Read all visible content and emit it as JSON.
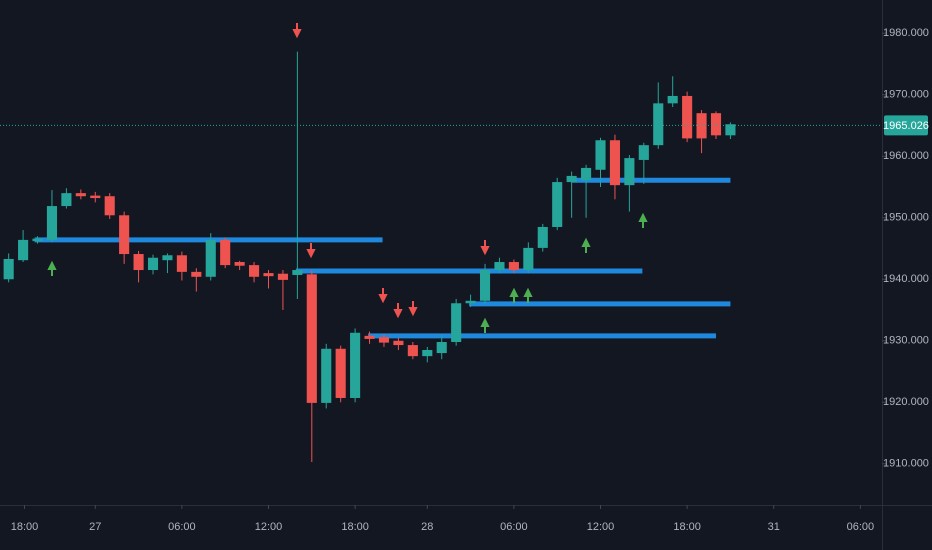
{
  "chart_data": {
    "type": "candlestick",
    "open": [
      1940.0,
      1943.1,
      1946.2,
      1946.4,
      1951.9,
      1954.0,
      1953.6,
      1953.5,
      1950.4,
      1944.1,
      1941.5,
      1943.1,
      1943.9,
      1941.2,
      1940.4,
      1946.4,
      1942.8,
      1942.3,
      1941.0,
      1940.9,
      1940.7,
      1940.8,
      1919.9,
      1928.7,
      1920.7,
      1930.8,
      1930.6,
      1930.0,
      1929.3,
      1927.5,
      1928.0,
      1929.8,
      1936.1,
      1936.5,
      1941.5,
      1942.8,
      1941.5,
      1945.1,
      1948.5,
      1955.8,
      1956.1,
      1957.8,
      1962.6,
      1955.3,
      1959.4,
      1961.8,
      1968.6,
      1969.8,
      1967.0,
      1967.0,
      1963.4
    ],
    "high": [
      1944.2,
      1948.0,
      1947.0,
      1954.5,
      1954.8,
      1954.6,
      1954.2,
      1954.0,
      1951.0,
      1944.6,
      1944.0,
      1944.2,
      1944.5,
      1941.8,
      1947.5,
      1946.8,
      1943.0,
      1942.8,
      1941.5,
      1941.5,
      1977.0,
      1941.4,
      1929.5,
      1929.2,
      1932.0,
      1931.5,
      1931.0,
      1930.5,
      1929.8,
      1929.0,
      1931.0,
      1936.8,
      1937.5,
      1942.5,
      1943.5,
      1943.2,
      1946.0,
      1949.0,
      1956.5,
      1957.5,
      1958.6,
      1963.0,
      1963.5,
      1960.2,
      1962.2,
      1972.0,
      1973.0,
      1970.5,
      1967.5,
      1967.3,
      1965.5
    ],
    "low": [
      1939.5,
      1942.8,
      1945.8,
      1946.0,
      1951.5,
      1953.0,
      1952.5,
      1949.8,
      1942.5,
      1939.5,
      1940.8,
      1941.0,
      1939.8,
      1938.0,
      1939.8,
      1941.8,
      1941.5,
      1939.5,
      1938.5,
      1935.0,
      1936.8,
      1910.3,
      1919.0,
      1920.0,
      1920.0,
      1929.5,
      1929.0,
      1928.5,
      1927.0,
      1926.5,
      1927.0,
      1929.2,
      1935.5,
      1936.0,
      1941.0,
      1941.0,
      1941.0,
      1944.5,
      1948.0,
      1950.0,
      1950.0,
      1955.0,
      1953.0,
      1951.0,
      1955.5,
      1961.2,
      1968.0,
      1962.3,
      1960.5,
      1962.8,
      1962.8
    ],
    "close": [
      1943.3,
      1946.4,
      1946.6,
      1951.9,
      1954.0,
      1953.5,
      1953.2,
      1950.4,
      1944.1,
      1941.5,
      1943.5,
      1943.9,
      1941.2,
      1940.4,
      1946.4,
      1942.3,
      1942.2,
      1940.4,
      1940.5,
      1939.9,
      1941.5,
      1919.9,
      1928.7,
      1920.7,
      1931.3,
      1930.3,
      1929.7,
      1929.3,
      1927.5,
      1928.5,
      1929.8,
      1936.1,
      1936.5,
      1941.5,
      1942.8,
      1941.5,
      1945.1,
      1948.5,
      1955.8,
      1956.8,
      1958.1,
      1962.6,
      1955.3,
      1959.7,
      1961.8,
      1968.6,
      1969.8,
      1962.9,
      1962.9,
      1963.4,
      1965.2
    ],
    "up_color": "#26a69a",
    "down_color": "#ef5350",
    "levels": [
      {
        "value": 1946.4,
        "start": 1.8,
        "end": 25.9
      },
      {
        "value": 1941.35,
        "start": 19.9,
        "end": 43.9
      },
      {
        "value": 1936.0,
        "start": 31.9,
        "end": 50
      },
      {
        "value": 1930.8,
        "start": 24.9,
        "end": 49
      },
      {
        "value": 1956.1,
        "start": 39,
        "end": 50
      }
    ],
    "level_color": "#2196f3",
    "last_price": 1965.026,
    "xlim": [
      -0.6,
      60.5
    ],
    "xticks": [
      {
        "value": 1.1,
        "label": "18:00"
      },
      {
        "value": 6,
        "label": "27"
      },
      {
        "value": 12,
        "label": "06:00"
      },
      {
        "value": 18,
        "label": "12:00"
      },
      {
        "value": 24,
        "label": "18:00"
      },
      {
        "value": 29,
        "label": "28"
      },
      {
        "value": 35,
        "label": "06:00"
      },
      {
        "value": 41,
        "label": "12:00"
      },
      {
        "value": 47,
        "label": "18:00"
      },
      {
        "value": 53,
        "label": "31"
      },
      {
        "value": 59,
        "label": "06:00"
      }
    ],
    "ylim": [
      1903.3,
      1985.4
    ],
    "yticks": [
      {
        "value": 1910,
        "label": "1910.000"
      },
      {
        "value": 1920,
        "label": "1920.000"
      },
      {
        "value": 1930,
        "label": "1930.000"
      },
      {
        "value": 1940,
        "label": "1940.000"
      },
      {
        "value": 1950,
        "label": "1950.000"
      },
      {
        "value": 1960,
        "label": "1960.000"
      },
      {
        "value": 1970,
        "label": "1970.000"
      },
      {
        "value": 1980,
        "label": "1980.000"
      }
    ],
    "grid": false
  }
}
